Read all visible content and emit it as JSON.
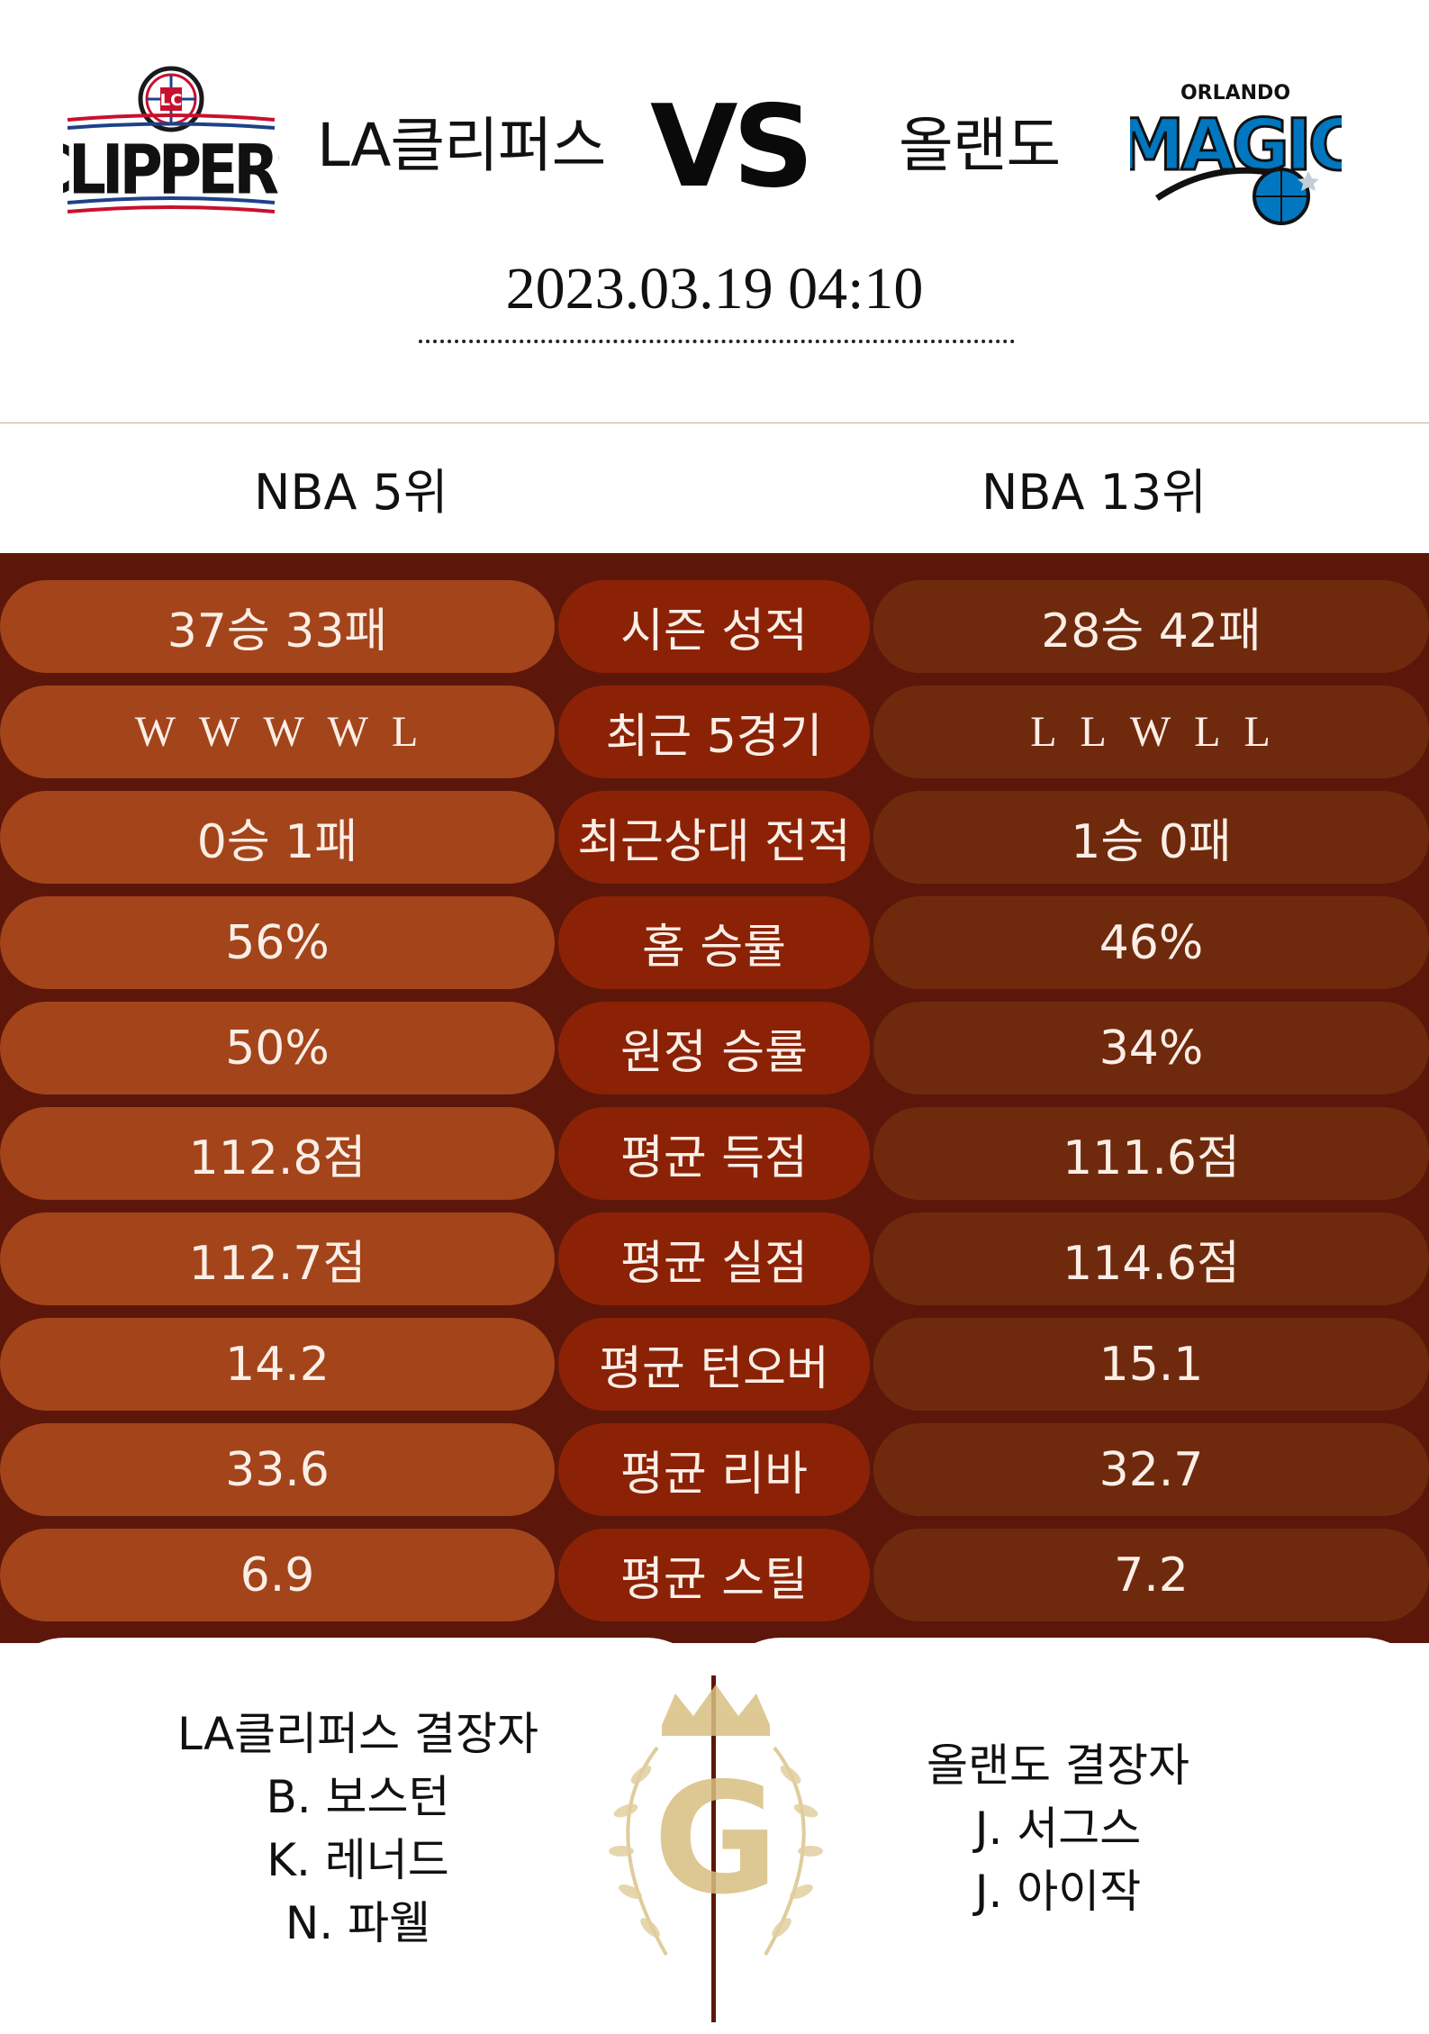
{
  "match": {
    "home_team": "LA클리퍼스",
    "vs": "VS",
    "away_team": "올랜도",
    "datetime": "2023.03.19  04:10",
    "home_logo_text": "CLIPPERS",
    "away_logo_text_top": "ORLANDO",
    "away_logo_text": "MAGIC"
  },
  "ranks": {
    "home": "NBA 5위",
    "away": "NBA 13위"
  },
  "stats": [
    {
      "label": "시즌 성적",
      "home": "37승 33패",
      "away": "28승 42패"
    },
    {
      "label": "최근 5경기",
      "home_form": [
        "W",
        "W",
        "W",
        "W",
        "L"
      ],
      "away_form": [
        "L",
        "L",
        "W",
        "L",
        "L"
      ]
    },
    {
      "label": "최근상대 전적",
      "home": "0승 1패",
      "away": "1승 0패"
    },
    {
      "label": "홈 승률",
      "home": "56%",
      "away": "46%"
    },
    {
      "label": "원정 승률",
      "home": "50%",
      "away": "34%"
    },
    {
      "label": "평균 득점",
      "home": "112.8점",
      "away": "111.6점"
    },
    {
      "label": "평균 실점",
      "home": "112.7점",
      "away": "114.6점"
    },
    {
      "label": "평균 턴오버",
      "home": "14.2",
      "away": "15.1"
    },
    {
      "label": "평균 리바",
      "home": "33.6",
      "away": "32.7"
    },
    {
      "label": "평균 스틸",
      "home": "6.9",
      "away": "7.2"
    }
  ],
  "injuries": {
    "home_title": "LA클리퍼스 결장자",
    "home_players": [
      "B. 보스턴",
      "K. 레너드",
      "N. 파웰"
    ],
    "away_title": "올랜도 결장자",
    "away_players": [
      "J. 서그스",
      "J. 아이작"
    ]
  },
  "emblem_letter": "G",
  "colors": {
    "background_stats": "#5c170a",
    "home_pill": "#a3441a",
    "label_pill": "#8b2206",
    "away_pill": "#6f2a0d",
    "gold": "#d8bf82"
  }
}
